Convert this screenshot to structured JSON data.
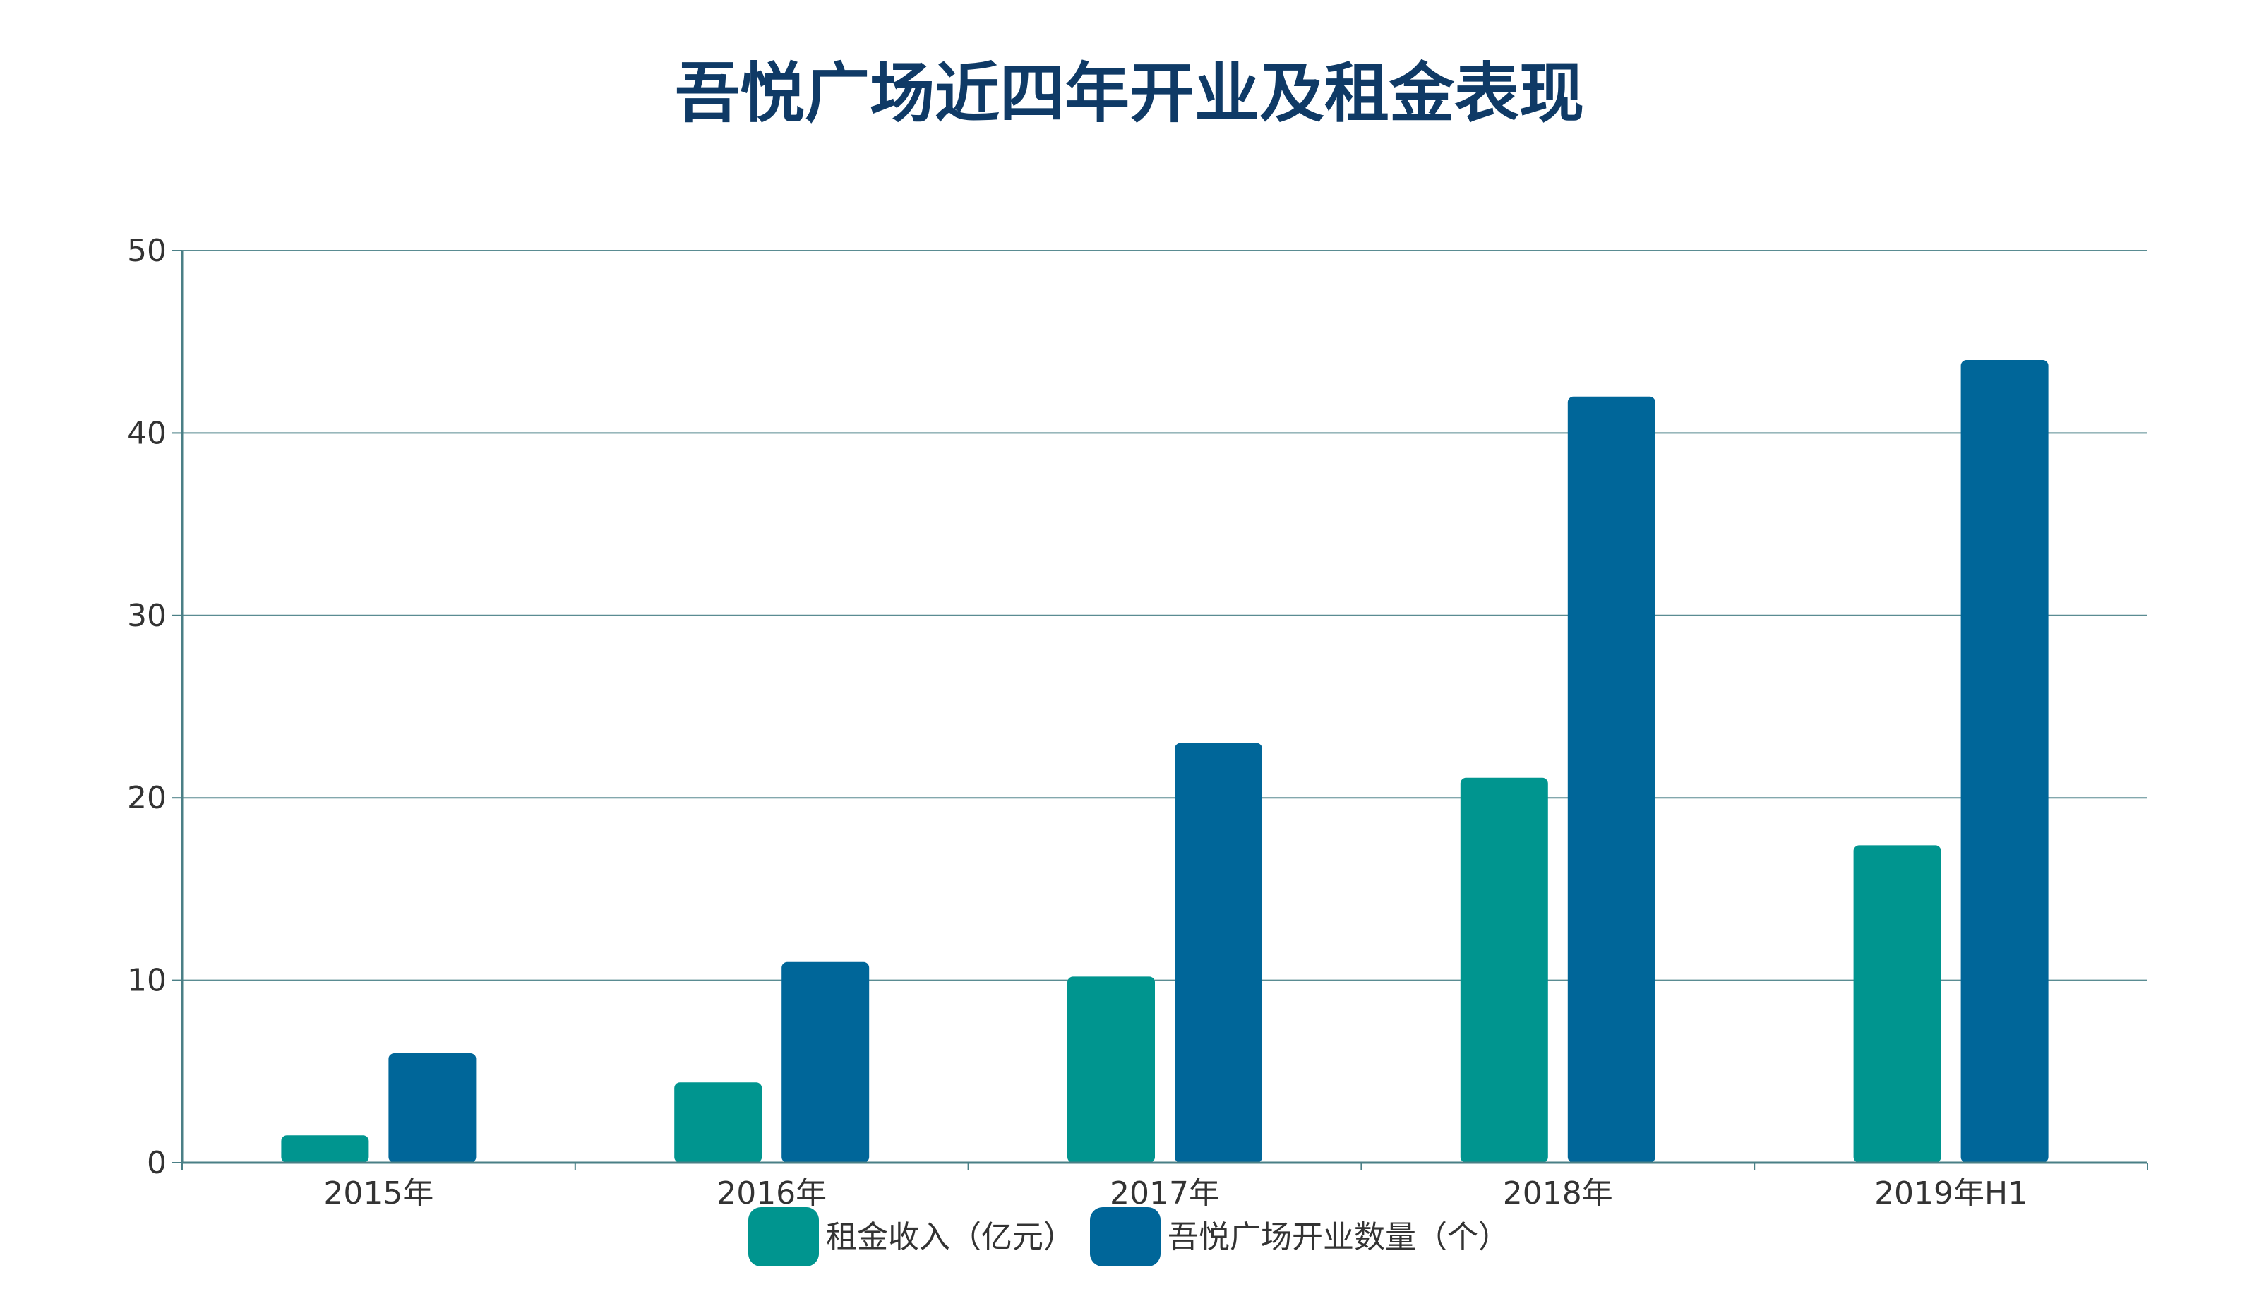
{
  "chart_data": {
    "type": "bar",
    "title": "吾悦广场近四年开业及租金表现",
    "categories": [
      "2015年",
      "2016年",
      "2017年",
      "2018年",
      "2019年H1"
    ],
    "series": [
      {
        "name": "租金收入（亿元）",
        "color": "#00958f",
        "values": [
          1.5,
          4.4,
          10.2,
          21.1,
          17.4
        ]
      },
      {
        "name": "吾悦广场开业数量（个）",
        "color": "#006699",
        "values": [
          6,
          11,
          23,
          42,
          44
        ]
      }
    ],
    "yticks": [
      "0",
      "10",
      "20",
      "30",
      "40",
      "50"
    ],
    "ylim": [
      0,
      50
    ],
    "grid": true,
    "legend": "bottom-center"
  }
}
